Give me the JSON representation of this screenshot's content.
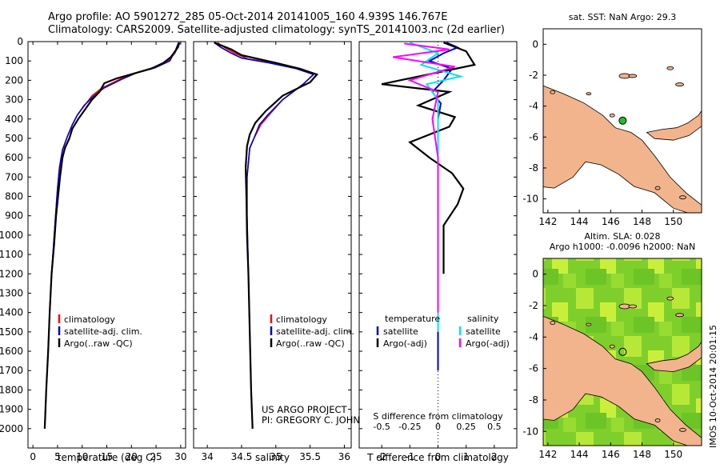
{
  "header": {
    "line1": "Argo profile: AO 5901272_285 05-Oct-2014 20141005_160 4.939S 146.767E",
    "line2": "Climatology: CARS2009. Satellite-adjusted climatology: synTS_20141003.nc (2d earlier)"
  },
  "colors": {
    "climatology": "#ff0000",
    "satellite": "#0000cc",
    "argo": "#000000",
    "argo_salinity_diff": "#ff00ff",
    "satellite_salinity_diff": "#00e5ee",
    "land": "#f2b48c",
    "sea_low": "#1fa01f",
    "sea_high": "#d8f53a"
  },
  "depth_axis": {
    "ticks": [
      0,
      100,
      200,
      300,
      400,
      500,
      600,
      700,
      800,
      900,
      1000,
      1100,
      1200,
      1300,
      1400,
      1500,
      1600,
      1700,
      1800,
      1900,
      2000
    ],
    "range": [
      0,
      2100
    ]
  },
  "chart_data": [
    {
      "type": "line",
      "id": "temperature",
      "xlabel": "temperature (deg C)",
      "xlim": [
        -1,
        31
      ],
      "xticks": [
        0,
        5,
        10,
        15,
        20,
        25,
        30
      ],
      "legend": [
        "climatology",
        "satellite-adj. clim.",
        "Argo(..raw -QC)"
      ],
      "series": [
        {
          "name": "climatology",
          "color_key": "climatology",
          "points": [
            [
              29.5,
              5
            ],
            [
              29.4,
              30
            ],
            [
              28.8,
              60
            ],
            [
              27.5,
              100
            ],
            [
              25,
              130
            ],
            [
              21,
              160
            ],
            [
              18,
              190
            ],
            [
              14,
              240
            ],
            [
              12,
              280
            ],
            [
              10.5,
              330
            ],
            [
              9,
              380
            ],
            [
              8,
              430
            ],
            [
              7,
              490
            ],
            [
              6,
              560
            ],
            [
              5.4,
              650
            ],
            [
              5,
              760
            ],
            [
              4.6,
              900
            ],
            [
              4.2,
              1050
            ],
            [
              3.8,
              1200
            ],
            [
              3.4,
              1400
            ],
            [
              3.1,
              1600
            ],
            [
              2.7,
              1800
            ],
            [
              2.4,
              2000
            ]
          ]
        },
        {
          "name": "satellite",
          "color_key": "satellite",
          "points": [
            [
              29.8,
              5
            ],
            [
              29.5,
              30
            ],
            [
              28.6,
              60
            ],
            [
              27.8,
              100
            ],
            [
              24.8,
              135
            ],
            [
              21.2,
              160
            ],
            [
              18,
              195
            ],
            [
              14.4,
              240
            ],
            [
              12.2,
              285
            ],
            [
              10.4,
              330
            ],
            [
              9,
              380
            ],
            [
              8,
              430
            ],
            [
              7,
              490
            ],
            [
              6,
              560
            ],
            [
              5.4,
              650
            ],
            [
              5,
              760
            ],
            [
              4.6,
              900
            ],
            [
              4.2,
              1050
            ],
            [
              3.8,
              1200
            ],
            [
              3.4,
              1400
            ],
            [
              3.1,
              1600
            ],
            [
              2.7,
              1800
            ],
            [
              2.4,
              2000
            ]
          ]
        },
        {
          "name": "argo",
          "color_key": "argo",
          "points": [
            [
              29.7,
              5
            ],
            [
              29.4,
              20
            ],
            [
              29,
              45
            ],
            [
              28,
              80
            ],
            [
              26.5,
              110
            ],
            [
              24,
              140
            ],
            [
              20.5,
              165
            ],
            [
              17,
              190
            ],
            [
              14.5,
              215
            ],
            [
              13.5,
              260
            ],
            [
              12,
              300
            ],
            [
              10.6,
              350
            ],
            [
              9.2,
              400
            ],
            [
              8,
              450
            ],
            [
              7.4,
              500
            ],
            [
              6.5,
              550
            ],
            [
              6,
              600
            ],
            [
              5.5,
              700
            ],
            [
              5.1,
              800
            ],
            [
              4.7,
              900
            ],
            [
              4.3,
              1050
            ],
            [
              3.8,
              1200
            ],
            [
              3.4,
              1400
            ],
            [
              3.1,
              1600
            ],
            [
              2.7,
              1800
            ],
            [
              2.4,
              2000
            ]
          ]
        }
      ]
    },
    {
      "type": "line",
      "id": "salinity",
      "xlabel": "salinity",
      "xlim": [
        33.8,
        36.1
      ],
      "xticks": [
        34,
        34.5,
        35,
        35.5,
        36
      ],
      "legend": [
        "climatology",
        "satellite-adj. clim.",
        "Argo(..raw -QC)"
      ],
      "annotations": [
        "US ARGO PROJECT",
        "PI: GREGORY C. JOHNSON"
      ],
      "series": [
        {
          "name": "climatology",
          "color_key": "climatology",
          "points": [
            [
              34.15,
              5
            ],
            [
              34.2,
              20
            ],
            [
              34.3,
              40
            ],
            [
              34.4,
              60
            ],
            [
              34.6,
              90
            ],
            [
              35.0,
              110
            ],
            [
              35.35,
              140
            ],
            [
              35.55,
              170
            ],
            [
              35.4,
              220
            ],
            [
              35.1,
              300
            ],
            [
              34.9,
              380
            ],
            [
              34.78,
              430
            ],
            [
              34.68,
              500
            ],
            [
              34.62,
              550
            ],
            [
              34.58,
              700
            ],
            [
              34.58,
              900
            ],
            [
              34.6,
              1200
            ],
            [
              34.62,
              1500
            ],
            [
              34.64,
              1800
            ],
            [
              34.66,
              2000
            ]
          ]
        },
        {
          "name": "satellite",
          "color_key": "satellite",
          "points": [
            [
              34.1,
              5
            ],
            [
              34.2,
              30
            ],
            [
              34.35,
              60
            ],
            [
              34.5,
              85
            ],
            [
              34.9,
              110
            ],
            [
              35.3,
              140
            ],
            [
              35.55,
              170
            ],
            [
              35.4,
              220
            ],
            [
              35.1,
              300
            ],
            [
              34.88,
              380
            ],
            [
              34.76,
              430
            ],
            [
              34.68,
              500
            ],
            [
              34.62,
              550
            ],
            [
              34.58,
              700
            ],
            [
              34.58,
              900
            ],
            [
              34.6,
              1200
            ],
            [
              34.62,
              1500
            ],
            [
              34.64,
              1800
            ],
            [
              34.66,
              2000
            ]
          ]
        },
        {
          "name": "argo",
          "color_key": "argo",
          "points": [
            [
              34.1,
              5
            ],
            [
              34.35,
              40
            ],
            [
              34.5,
              70
            ],
            [
              35.0,
              110
            ],
            [
              35.35,
              140
            ],
            [
              35.6,
              170
            ],
            [
              35.5,
              210
            ],
            [
              35.1,
              280
            ],
            [
              34.85,
              360
            ],
            [
              34.7,
              420
            ],
            [
              34.62,
              480
            ],
            [
              34.58,
              540
            ],
            [
              34.56,
              650
            ],
            [
              34.57,
              800
            ],
            [
              34.58,
              1000
            ],
            [
              34.6,
              1200
            ],
            [
              34.62,
              1500
            ],
            [
              34.64,
              1800
            ],
            [
              34.66,
              2000
            ]
          ]
        }
      ]
    },
    {
      "type": "line",
      "id": "differences",
      "xlabel": "T difference from climatology",
      "xlim": [
        -2.8,
        2.8
      ],
      "xticks": [
        -2,
        -1,
        0,
        1,
        2
      ],
      "xlabel_top": "S difference from climatology",
      "xticks_top": [
        -0.5,
        -0.25,
        0,
        0.25,
        0.5
      ],
      "legend_temperature": [
        "temperature",
        "satellite",
        "Argo(-adj)"
      ],
      "legend_salinity": [
        "salinity",
        "satellite",
        "Argo(-adj)"
      ],
      "series": [
        {
          "name": "temperature satellite",
          "color_key": "satellite",
          "points": [
            [
              0.3,
              5
            ],
            [
              0.7,
              30
            ],
            [
              0.2,
              60
            ],
            [
              -0.3,
              100
            ],
            [
              0.5,
              140
            ],
            [
              0.2,
              200
            ],
            [
              -0.2,
              260
            ],
            [
              0.1,
              320
            ],
            [
              0,
              400
            ],
            [
              0,
              600
            ],
            [
              0,
              1000
            ],
            [
              0,
              1400
            ],
            [
              0,
              1700
            ]
          ]
        },
        {
          "name": "temperature Argo",
          "color_key": "argo",
          "points": [
            [
              0.2,
              5
            ],
            [
              1.0,
              50
            ],
            [
              1.3,
              120
            ],
            [
              -2.0,
              220
            ],
            [
              0.4,
              260
            ],
            [
              -0.7,
              330
            ],
            [
              0.6,
              390
            ],
            [
              0.4,
              440
            ],
            [
              -1.0,
              520
            ],
            [
              -0.3,
              600
            ],
            [
              0.5,
              680
            ],
            [
              0.9,
              760
            ],
            [
              0.7,
              840
            ],
            [
              0.2,
              950
            ],
            [
              0.2,
              1100
            ],
            [
              0.2,
              1200
            ]
          ]
        },
        {
          "name": "salinity satellite",
          "color_key": "satellite_salinity_diff",
          "points": [
            [
              -0.25,
              5
            ],
            [
              0,
              60
            ],
            [
              -0.15,
              120
            ],
            [
              0.2,
              180
            ],
            [
              -0.1,
              220
            ],
            [
              0,
              300
            ],
            [
              0,
              500
            ],
            [
              0,
              1000
            ],
            [
              0,
              1500
            ]
          ]
        },
        {
          "name": "salinity Argo",
          "color_key": "argo_salinity_diff",
          "points": [
            [
              -0.3,
              10
            ],
            [
              0.1,
              40
            ],
            [
              -0.4,
              80
            ],
            [
              0.15,
              130
            ],
            [
              -0.25,
              200
            ],
            [
              0,
              260
            ],
            [
              -0.05,
              400
            ],
            [
              0,
              600
            ],
            [
              0,
              1000
            ],
            [
              0,
              1400
            ]
          ]
        }
      ]
    },
    {
      "type": "heatmap",
      "id": "sst_map",
      "title": "sat. SST: NaN Argo: 29.3",
      "xticks": [
        142,
        144,
        146,
        148,
        150
      ],
      "yticks": [
        0,
        -2,
        -4,
        -6,
        -8,
        -10
      ],
      "xlim": [
        141.7,
        151.8
      ],
      "ylim": [
        -10.9,
        1
      ],
      "float_position": [
        146.767,
        -4.939
      ]
    },
    {
      "type": "heatmap",
      "id": "sla_map",
      "title": "Altim. SLA: 0.028",
      "subtitle": "Argo h1000: -0.0096 h2000: NaN",
      "xticks": [
        142,
        144,
        146,
        148,
        150
      ],
      "yticks": [
        0,
        -2,
        -4,
        -6,
        -8,
        -10
      ],
      "xlim": [
        141.7,
        151.8
      ],
      "ylim": [
        -10.9,
        1
      ],
      "float_position": [
        146.767,
        -4.939
      ]
    }
  ],
  "side_stamp": "IMOS 10-Oct-2014 20:01:15"
}
